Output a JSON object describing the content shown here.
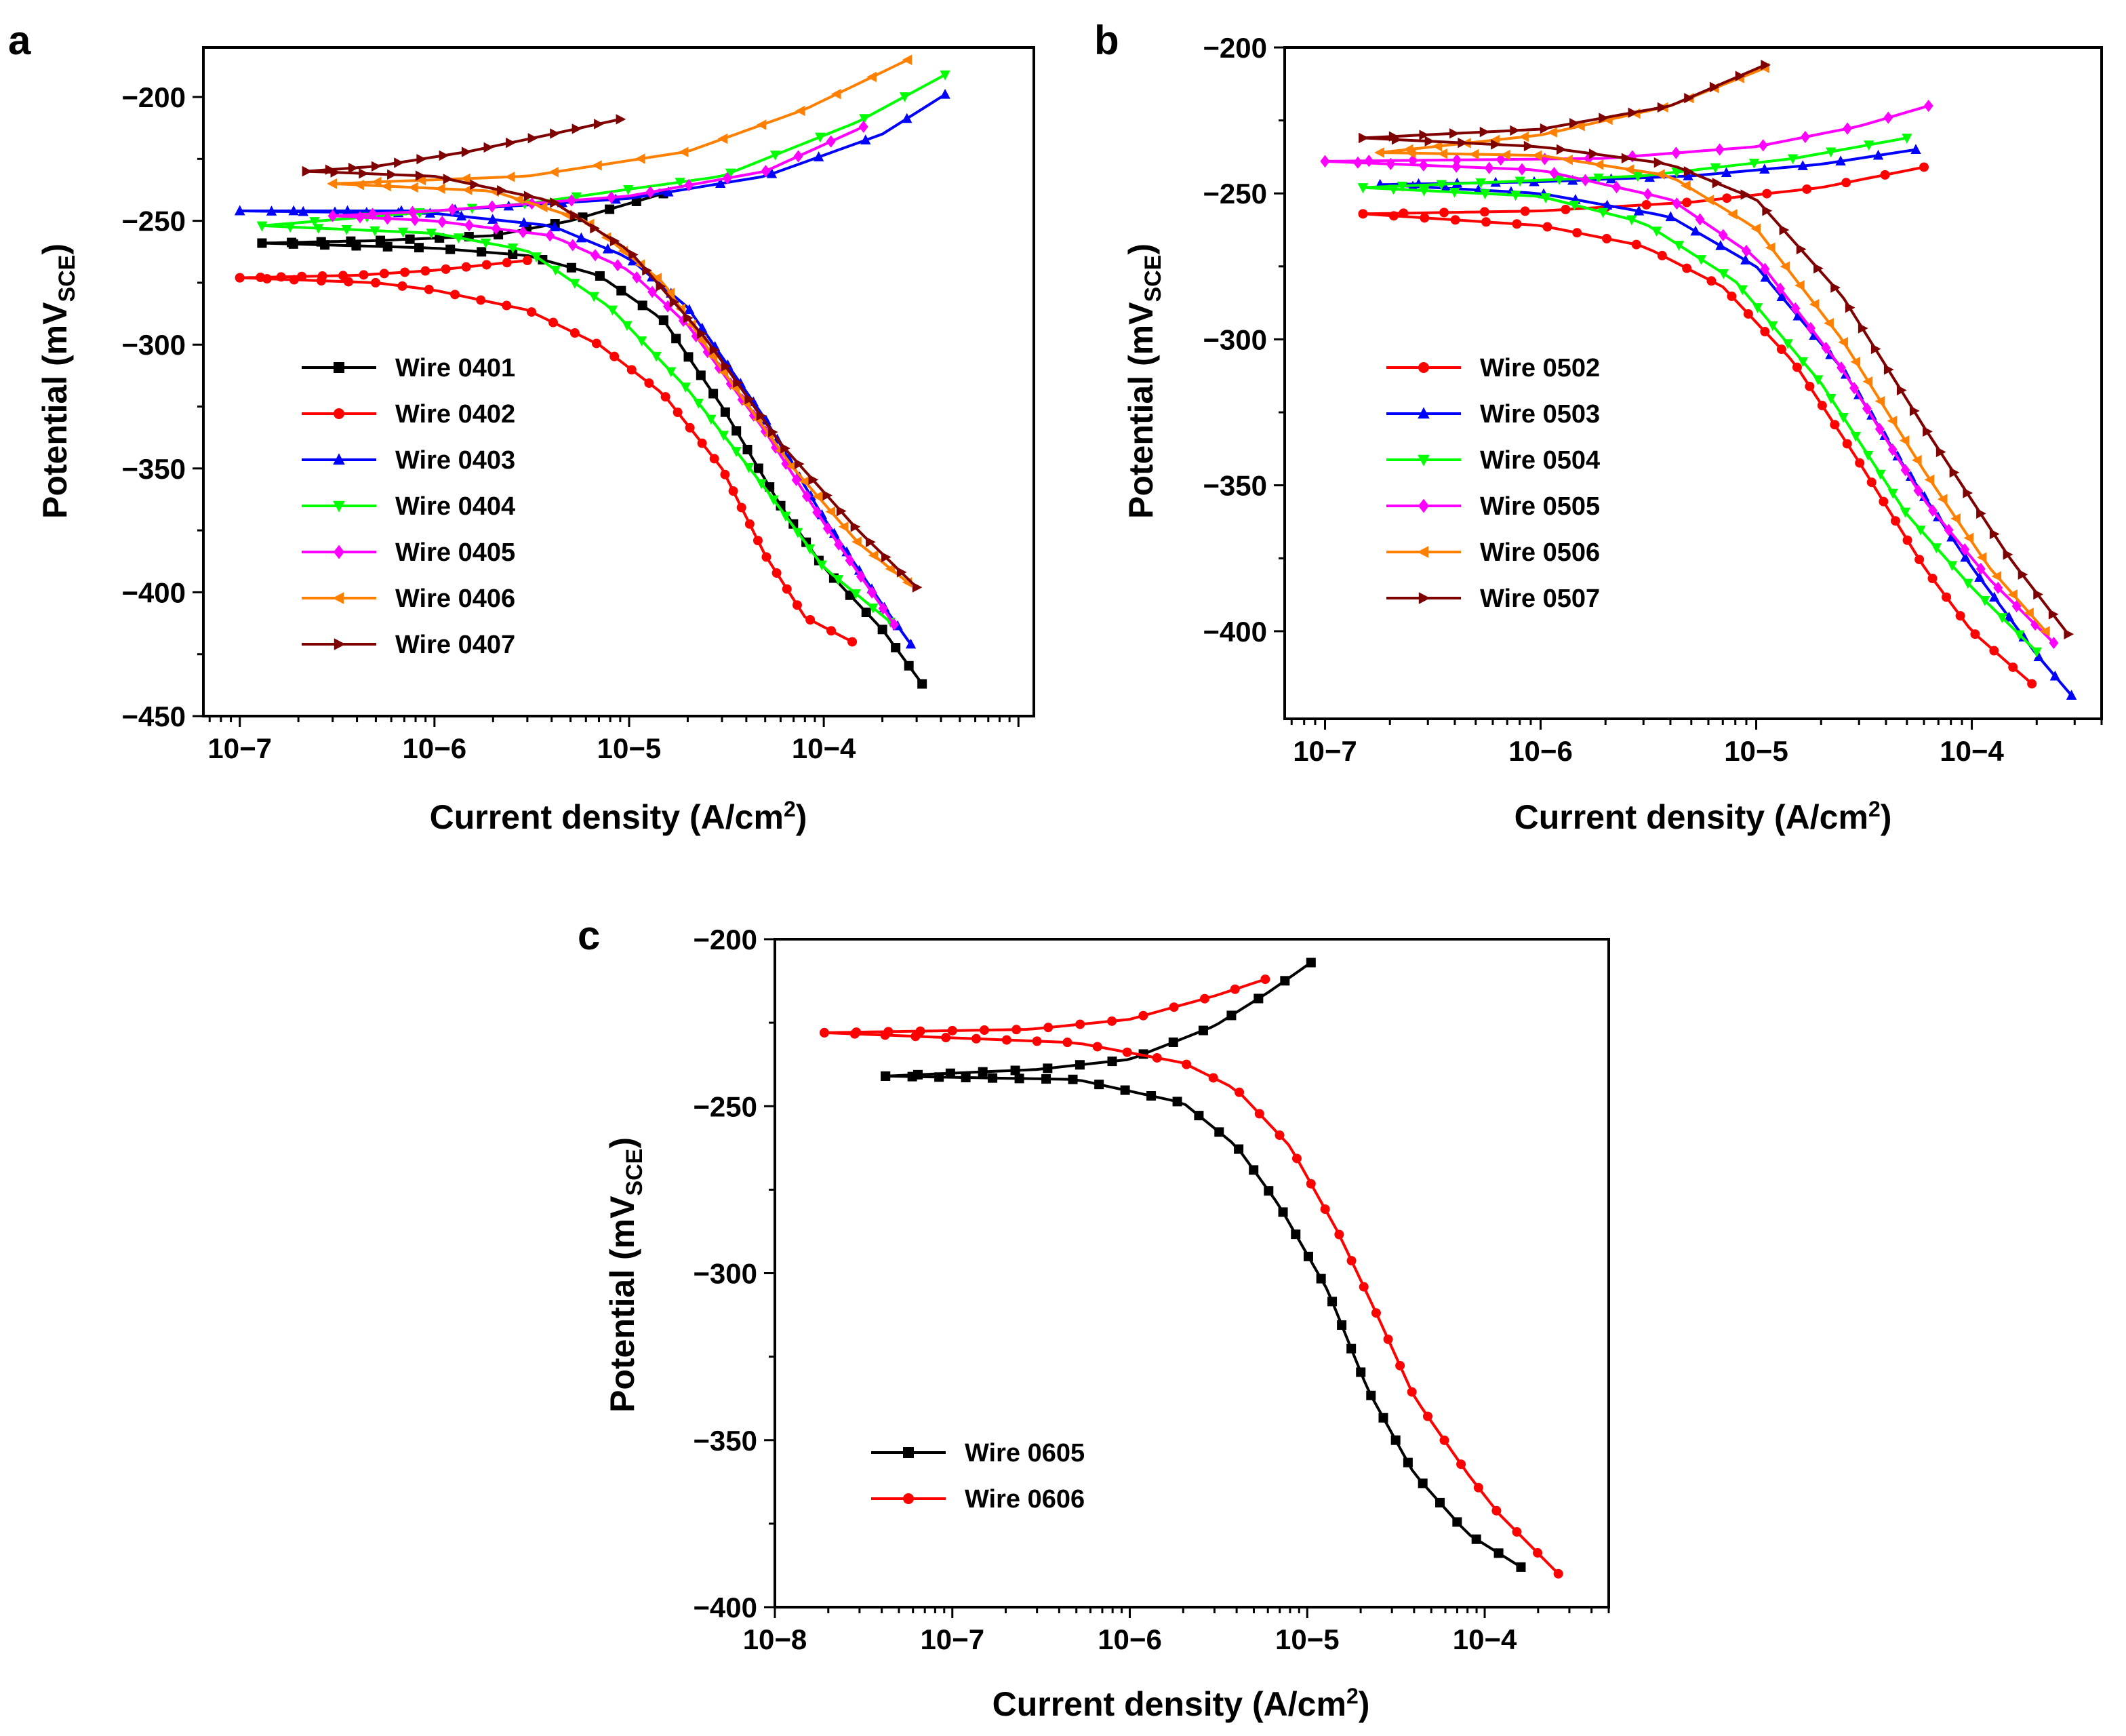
{
  "chart_data": [
    {
      "type": "line",
      "panel_label": "a",
      "xscale": "log",
      "xlabel": "Current density (A/cm2)",
      "ylabel": "Potential (mVSCE)",
      "xlim": [
        6.5e-08,
        0.0012
      ],
      "ylim": [
        -450,
        -180
      ],
      "xticks": [
        1e-07,
        1e-06,
        1e-05,
        0.0001
      ],
      "xtick_labels": [
        "10−7",
        "10−6",
        "10−5",
        "10−4"
      ],
      "yticks": [
        -450,
        -400,
        -350,
        -300,
        -250,
        -200
      ],
      "ytick_labels": [
        "−450",
        "−400",
        "−350",
        "−300",
        "−250",
        "−200"
      ],
      "legend_position": "lower-left",
      "series": [
        {
          "name": "Wire 0401",
          "color": "#000000",
          "marker": "square",
          "anodic": [
            [
              1.5e-05,
              -239
            ],
            [
              1e-05,
              -243
            ],
            [
              5e-06,
              -250
            ],
            [
              2e-06,
              -256
            ],
            [
              5e-07,
              -258
            ],
            [
              1.3e-07,
              -259
            ]
          ],
          "cathodic": [
            [
              1.3e-07,
              -259
            ],
            [
              1e-06,
              -261
            ],
            [
              3e-06,
              -264
            ],
            [
              7e-06,
              -272
            ],
            [
              1.5e-05,
              -290
            ],
            [
              3e-05,
              -325
            ],
            [
              6e-05,
              -365
            ],
            [
              0.0001,
              -390
            ],
            [
              0.0002,
              -415
            ],
            [
              0.00032,
              -437
            ]
          ]
        },
        {
          "name": "Wire 0402",
          "color": "#ff0000",
          "marker": "circle",
          "anodic": [
            [
              3e-06,
              -266
            ],
            [
              1e-06,
              -270
            ],
            [
              4e-07,
              -272
            ],
            [
              1e-07,
              -273
            ]
          ],
          "cathodic": [
            [
              1e-07,
              -273
            ],
            [
              5e-07,
              -275
            ],
            [
              1e-06,
              -278
            ],
            [
              3e-06,
              -286
            ],
            [
              7e-06,
              -300
            ],
            [
              1.5e-05,
              -320
            ],
            [
              3e-05,
              -350
            ],
            [
              5e-05,
              -385
            ],
            [
              8e-05,
              -410
            ],
            [
              0.00014,
              -420
            ]
          ]
        },
        {
          "name": "Wire 0403",
          "color": "#0000ff",
          "marker": "triangle-up",
          "anodic": [
            [
              0.00042,
              -199
            ],
            [
              0.0002,
              -215
            ],
            [
              5e-05,
              -232
            ],
            [
              1e-05,
              -241
            ],
            [
              1e-06,
              -246
            ],
            [
              1e-07,
              -246
            ]
          ],
          "cathodic": [
            [
              1e-07,
              -246
            ],
            [
              1e-06,
              -247
            ],
            [
              4e-06,
              -252
            ],
            [
              1e-05,
              -265
            ],
            [
              2e-05,
              -285
            ],
            [
              5e-05,
              -330
            ],
            [
              0.0001,
              -370
            ],
            [
              0.0002,
              -405
            ],
            [
              0.00028,
              -421
            ]
          ]
        },
        {
          "name": "Wire 0404",
          "color": "#00ff00",
          "marker": "triangle-down",
          "anodic": [
            [
              0.00042,
              -191
            ],
            [
              0.00015,
              -210
            ],
            [
              3e-05,
              -232
            ],
            [
              3e-06,
              -243
            ],
            [
              1.3e-07,
              -252
            ]
          ],
          "cathodic": [
            [
              1.3e-07,
              -252
            ],
            [
              1e-06,
              -255
            ],
            [
              3e-06,
              -262
            ],
            [
              8e-06,
              -285
            ],
            [
              2e-05,
              -318
            ],
            [
              5e-05,
              -358
            ],
            [
              0.0001,
              -390
            ],
            [
              0.00022,
              -412
            ]
          ]
        },
        {
          "name": "Wire 0405",
          "color": "#ff00ff",
          "marker": "diamond",
          "anodic": [
            [
              0.00016,
              -212
            ],
            [
              5e-05,
              -230
            ],
            [
              1e-05,
              -240
            ],
            [
              1e-06,
              -246
            ],
            [
              3e-07,
              -248
            ]
          ],
          "cathodic": [
            [
              3e-07,
              -248
            ],
            [
              1e-06,
              -250
            ],
            [
              4e-06,
              -256
            ],
            [
              1e-05,
              -270
            ],
            [
              2e-05,
              -292
            ],
            [
              5e-05,
              -335
            ],
            [
              0.0001,
              -372
            ],
            [
              0.00023,
              -413
            ]
          ]
        },
        {
          "name": "Wire 0406",
          "color": "#ff8000",
          "marker": "triangle-left",
          "anodic": [
            [
              0.00027,
              -185
            ],
            [
              8e-05,
              -205
            ],
            [
              2e-05,
              -222
            ],
            [
              3e-06,
              -232
            ],
            [
              3e-07,
              -235
            ]
          ],
          "cathodic": [
            [
              3e-07,
              -235
            ],
            [
              2e-06,
              -238
            ],
            [
              6e-06,
              -250
            ],
            [
              1.5e-05,
              -275
            ],
            [
              3e-05,
              -310
            ],
            [
              7e-05,
              -350
            ],
            [
              0.00015,
              -380
            ],
            [
              0.00027,
              -396
            ]
          ]
        },
        {
          "name": "Wire 0407",
          "color": "#7f0000",
          "marker": "triangle-right",
          "anodic": [
            [
              9e-06,
              -209
            ],
            [
              4e-06,
              -215
            ],
            [
              1.5e-06,
              -222
            ],
            [
              5e-07,
              -228
            ],
            [
              2.2e-07,
              -230
            ]
          ],
          "cathodic": [
            [
              2.2e-07,
              -230
            ],
            [
              1e-06,
              -232
            ],
            [
              4e-06,
              -242
            ],
            [
              1e-05,
              -262
            ],
            [
              2.5e-05,
              -298
            ],
            [
              6e-05,
              -340
            ],
            [
              0.00015,
              -375
            ],
            [
              0.0003,
              -398
            ]
          ]
        }
      ]
    },
    {
      "type": "line",
      "panel_label": "b",
      "xscale": "log",
      "xlabel": "Current density (A/cm2)",
      "ylabel": "Potential (mVSCE)",
      "xlim": [
        6.5e-08,
        0.0004
      ],
      "ylim": [
        -430,
        -200
      ],
      "xticks": [
        1e-07,
        1e-06,
        1e-05,
        0.0001
      ],
      "xtick_labels": [
        "10−7",
        "10−6",
        "10−5",
        "10−4"
      ],
      "yticks": [
        -400,
        -350,
        -300,
        -250,
        -200
      ],
      "ytick_labels": [
        "−400",
        "−350",
        "−300",
        "−250",
        "−200"
      ],
      "legend_position": "middle-left",
      "series": [
        {
          "name": "Wire 0502",
          "color": "#ff0000",
          "marker": "circle",
          "anodic": [
            [
              6e-05,
              -241
            ],
            [
              2e-05,
              -248
            ],
            [
              5e-06,
              -253
            ],
            [
              1e-06,
              -256
            ],
            [
              1.5e-07,
              -257
            ]
          ],
          "cathodic": [
            [
              1.5e-07,
              -257
            ],
            [
              1e-06,
              -261
            ],
            [
              3e-06,
              -268
            ],
            [
              7e-06,
              -282
            ],
            [
              1.5e-05,
              -308
            ],
            [
              3e-05,
              -342
            ],
            [
              6e-05,
              -378
            ],
            [
              0.0001,
              -400
            ],
            [
              0.00019,
              -418
            ]
          ]
        },
        {
          "name": "Wire 0503",
          "color": "#0000ff",
          "marker": "triangle-up",
          "anodic": [
            [
              5.5e-05,
              -235
            ],
            [
              2e-05,
              -240
            ],
            [
              5e-06,
              -244
            ],
            [
              1e-06,
              -246
            ],
            [
              1.8e-07,
              -247
            ]
          ],
          "cathodic": [
            [
              1.8e-07,
              -247
            ],
            [
              1e-06,
              -250
            ],
            [
              4e-06,
              -258
            ],
            [
              1e-05,
              -275
            ],
            [
              2.5e-05,
              -310
            ],
            [
              5e-05,
              -345
            ],
            [
              0.0001,
              -378
            ],
            [
              0.0002,
              -408
            ],
            [
              0.00029,
              -422
            ]
          ]
        },
        {
          "name": "Wire 0504",
          "color": "#00ff00",
          "marker": "triangle-down",
          "anodic": [
            [
              5e-05,
              -231
            ],
            [
              1.5e-05,
              -238
            ],
            [
              3e-06,
              -244
            ],
            [
              1.5e-07,
              -248
            ]
          ],
          "cathodic": [
            [
              1.5e-07,
              -248
            ],
            [
              1e-06,
              -251
            ],
            [
              3e-06,
              -260
            ],
            [
              8e-06,
              -280
            ],
            [
              2e-05,
              -315
            ],
            [
              5e-05,
              -360
            ],
            [
              0.0001,
              -385
            ],
            [
              0.0002,
              -407
            ]
          ]
        },
        {
          "name": "Wire 0505",
          "color": "#ff00ff",
          "marker": "diamond",
          "anodic": [
            [
              6.3e-05,
              -220
            ],
            [
              3e-05,
              -227
            ],
            [
              1e-05,
              -234
            ],
            [
              2e-06,
              -238
            ],
            [
              1e-07,
              -239
            ]
          ],
          "cathodic": [
            [
              1e-07,
              -239
            ],
            [
              1e-06,
              -242
            ],
            [
              4e-06,
              -252
            ],
            [
              1e-05,
              -272
            ],
            [
              2.5e-05,
              -310
            ],
            [
              6e-05,
              -355
            ],
            [
              0.00012,
              -382
            ],
            [
              0.00024,
              -404
            ]
          ]
        },
        {
          "name": "Wire 0506",
          "color": "#ff8000",
          "marker": "triangle-left",
          "anodic": [
            [
              1.1e-05,
              -207
            ],
            [
              4e-06,
              -220
            ],
            [
              1e-06,
              -230
            ],
            [
              1.8e-07,
              -236
            ]
          ],
          "cathodic": [
            [
              1.8e-07,
              -236
            ],
            [
              1e-06,
              -237
            ],
            [
              4e-06,
              -244
            ],
            [
              1e-05,
              -262
            ],
            [
              2.5e-05,
              -300
            ],
            [
              6e-05,
              -345
            ],
            [
              0.00012,
              -378
            ],
            [
              0.00022,
              -400
            ]
          ]
        },
        {
          "name": "Wire 0507",
          "color": "#7f0000",
          "marker": "triangle-right",
          "anodic": [
            [
              1.1e-05,
              -206
            ],
            [
              4e-06,
              -220
            ],
            [
              1e-06,
              -228
            ],
            [
              1.5e-07,
              -231
            ]
          ],
          "cathodic": [
            [
              1.5e-07,
              -231
            ],
            [
              1e-06,
              -234
            ],
            [
              4e-06,
              -240
            ],
            [
              1e-05,
              -252
            ],
            [
              2.5e-05,
              -285
            ],
            [
              6e-05,
              -330
            ],
            [
              0.00015,
              -375
            ],
            [
              0.00028,
              -401
            ]
          ]
        }
      ]
    },
    {
      "type": "line",
      "panel_label": "c",
      "xscale": "log",
      "xlabel": "Current density (A/cm2)",
      "ylabel": "Potential (mVSCE)",
      "xlim": [
        1e-08,
        0.0005
      ],
      "ylim": [
        -400,
        -200
      ],
      "xticks": [
        1e-08,
        1e-07,
        1e-06,
        1e-05,
        0.0001
      ],
      "xtick_labels": [
        "10−8",
        "10−7",
        "10−6",
        "10−5",
        "10−4"
      ],
      "yticks": [
        -400,
        -350,
        -300,
        -250,
        -200
      ],
      "ytick_labels": [
        "−400",
        "−350",
        "−300",
        "−250",
        "−200"
      ],
      "legend_position": "lower-left",
      "series": [
        {
          "name": "Wire 0605",
          "color": "#000000",
          "marker": "square",
          "anodic": [
            [
              1.05e-05,
              -207
            ],
            [
              6e-06,
              -216
            ],
            [
              3e-06,
              -226
            ],
            [
              1e-06,
              -236
            ],
            [
              3e-07,
              -239
            ],
            [
              4.2e-08,
              -241
            ]
          ],
          "cathodic": [
            [
              4.2e-08,
              -241
            ],
            [
              5e-07,
              -242
            ],
            [
              2e-06,
              -249
            ],
            [
              4e-06,
              -262
            ],
            [
              7e-06,
              -280
            ],
            [
              1.3e-05,
              -305
            ],
            [
              2.2e-05,
              -335
            ],
            [
              4e-05,
              -360
            ],
            [
              8e-05,
              -378
            ],
            [
              0.00016,
              -388
            ]
          ]
        },
        {
          "name": "Wire 0606",
          "color": "#ff0000",
          "marker": "circle",
          "anodic": [
            [
              5.8e-06,
              -212
            ],
            [
              3e-06,
              -217
            ],
            [
              1e-06,
              -224
            ],
            [
              2.7e-07,
              -227
            ],
            [
              1.9e-08,
              -228
            ]
          ],
          "cathodic": [
            [
              1.9e-08,
              -228
            ],
            [
              5e-07,
              -231
            ],
            [
              2e-06,
              -237
            ],
            [
              4e-06,
              -245
            ],
            [
              8e-06,
              -262
            ],
            [
              1.5e-05,
              -288
            ],
            [
              2.5e-05,
              -313
            ],
            [
              4e-05,
              -337
            ],
            [
              8e-05,
              -360
            ],
            [
              0.00012,
              -372
            ],
            [
              0.00026,
              -390
            ]
          ]
        }
      ]
    }
  ]
}
